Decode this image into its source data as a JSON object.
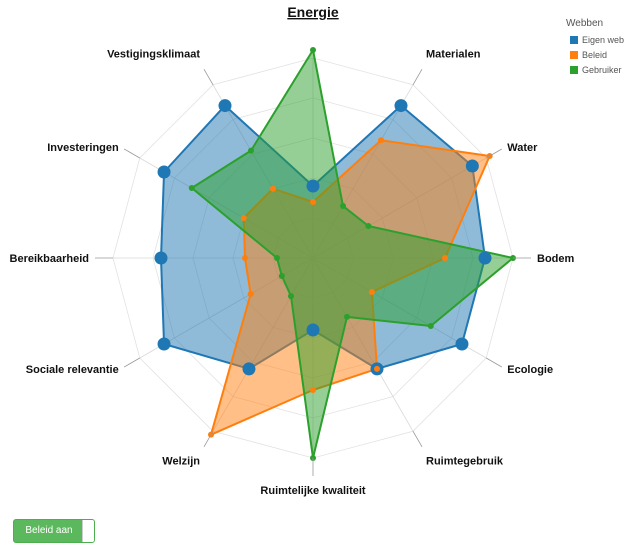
{
  "chart_data": {
    "type": "radar",
    "title": "Energie",
    "axes": [
      "Energie",
      "Materialen",
      "Water",
      "Bodem",
      "Ecologie",
      "Ruimtegebruik",
      "Ruimtelijke kwaliteit",
      "Welzijn",
      "Sociale relevantie",
      "Bereikbaarheid",
      "Investeringen",
      "Vestigingsklimaat"
    ],
    "range": [
      0,
      5
    ],
    "series": [
      {
        "name": "Eigen web",
        "color": "#1f77b4",
        "values": [
          1.8,
          4.4,
          4.6,
          4.3,
          4.3,
          3.2,
          1.8,
          3.2,
          4.3,
          3.8,
          4.3,
          4.4
        ]
      },
      {
        "name": "Beleid",
        "color": "#ff7f0e",
        "values": [
          1.4,
          3.4,
          5.1,
          3.3,
          1.7,
          3.2,
          3.3,
          5.1,
          1.8,
          1.7,
          2.0,
          2.0
        ]
      },
      {
        "name": "Gebruiker",
        "color": "#2ca02c",
        "values": [
          5.2,
          1.5,
          1.6,
          5.0,
          3.4,
          1.7,
          5.0,
          1.1,
          0.9,
          0.9,
          3.5,
          3.1
        ]
      }
    ],
    "legend": {
      "title": "Webben",
      "position": "top-right"
    },
    "grid": true
  },
  "toggle": {
    "label": "Beleid aan"
  }
}
